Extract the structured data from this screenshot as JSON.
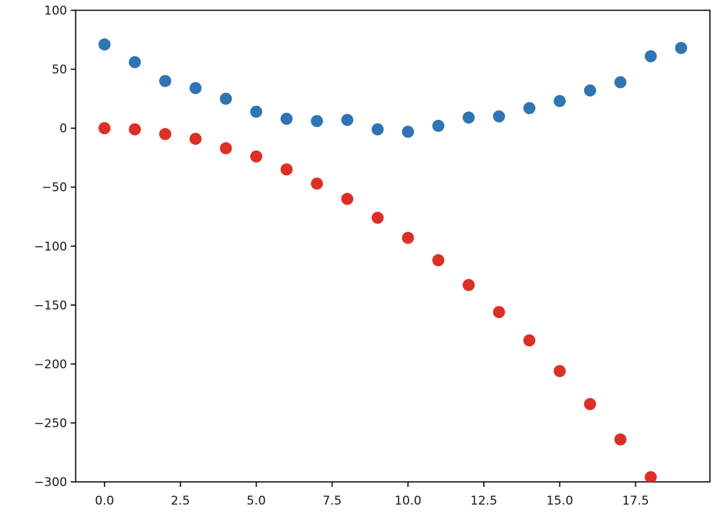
{
  "figure": {
    "background": "#ffffff"
  },
  "chart_data": {
    "type": "scatter",
    "title": "",
    "xlabel": "",
    "ylabel": "",
    "grid": false,
    "legend": null,
    "axis_color": "#000000",
    "tick_label_color": "#1a1a1a",
    "xlim": [
      -0.95,
      19.95
    ],
    "ylim": [
      -300,
      100
    ],
    "x_ticks": [
      0.0,
      2.5,
      5.0,
      7.5,
      10.0,
      12.5,
      15.0,
      17.5
    ],
    "x_tick_labels": [
      "0.0",
      "2.5",
      "5.0",
      "7.5",
      "10.0",
      "12.5",
      "15.0",
      "17.5"
    ],
    "y_ticks": [
      100,
      50,
      0,
      -50,
      -100,
      -150,
      -200,
      -250,
      -300
    ],
    "y_tick_labels": [
      "100",
      "50",
      "0",
      "−50",
      "−100",
      "−150",
      "−200",
      "−250",
      "−300"
    ],
    "marker": {
      "shape": "circle",
      "radius_px": 8.5
    },
    "series": [
      {
        "name": "blue-series",
        "color": "#2f74b3",
        "x": [
          0,
          1,
          2,
          3,
          4,
          5,
          6,
          7,
          8,
          9,
          10,
          11,
          12,
          13,
          14,
          15,
          16,
          17,
          18,
          19
        ],
        "y": [
          71,
          56,
          40,
          34,
          25,
          14,
          8,
          6,
          7,
          -1,
          -3,
          2,
          9,
          10,
          17,
          23,
          32,
          39,
          61,
          68
        ]
      },
      {
        "name": "red-series",
        "color": "#dc2f25",
        "x": [
          0,
          1,
          2,
          3,
          4,
          5,
          6,
          7,
          8,
          9,
          10,
          11,
          12,
          13,
          14,
          15,
          16,
          17,
          18
        ],
        "y": [
          0,
          -1,
          -5,
          -9,
          -17,
          -24,
          -35,
          -47,
          -60,
          -76,
          -93,
          -112,
          -133,
          -156,
          -180,
          -206,
          -234,
          -264,
          -296
        ]
      }
    ]
  }
}
